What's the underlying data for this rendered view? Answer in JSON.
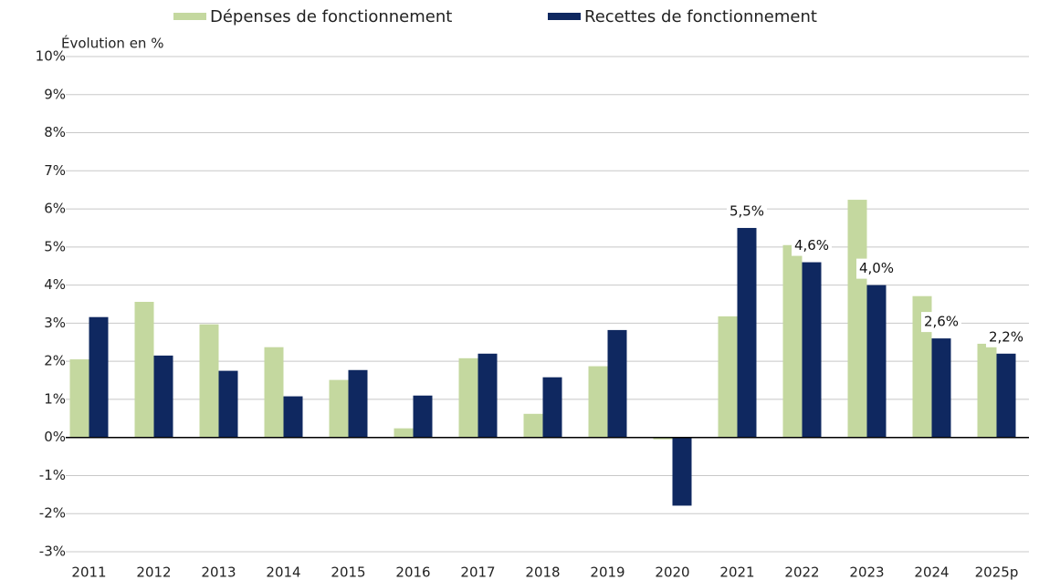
{
  "chart_data": {
    "type": "bar",
    "y_axis_label": "Évolution en %",
    "categories": [
      "2011",
      "2012",
      "2013",
      "2014",
      "2015",
      "2016",
      "2017",
      "2018",
      "2019",
      "2020",
      "2021",
      "2022",
      "2023",
      "2024",
      "2025p"
    ],
    "series": [
      {
        "name": "Dépenses de fonctionnement",
        "color": "#c4d89f",
        "values": [
          2.05,
          3.56,
          2.97,
          2.37,
          1.51,
          0.24,
          2.08,
          0.62,
          1.87,
          -0.05,
          3.18,
          5.05,
          6.24,
          3.71,
          2.46
        ]
      },
      {
        "name": "Recettes de fonctionnement",
        "color": "#0f2860",
        "values": [
          3.16,
          2.15,
          1.75,
          1.08,
          1.77,
          1.1,
          2.2,
          1.58,
          2.82,
          -1.79,
          5.5,
          4.6,
          4.0,
          2.6,
          2.2
        ],
        "value_labels": [
          null,
          null,
          null,
          null,
          null,
          null,
          null,
          null,
          null,
          null,
          "5,5%",
          "4,6%",
          "4,0%",
          "2,6%",
          "2,2%"
        ]
      }
    ],
    "ylim": [
      -3,
      10
    ],
    "yticks": [
      {
        "value": -3,
        "label": "-3%"
      },
      {
        "value": -2,
        "label": "-2%"
      },
      {
        "value": -1,
        "label": "-1%"
      },
      {
        "value": 0,
        "label": "0%"
      },
      {
        "value": 1,
        "label": "1%"
      },
      {
        "value": 2,
        "label": "2%"
      },
      {
        "value": 3,
        "label": "3%"
      },
      {
        "value": 4,
        "label": "4%"
      },
      {
        "value": 5,
        "label": "5%"
      },
      {
        "value": 6,
        "label": "6%"
      },
      {
        "value": 7,
        "label": "7%"
      },
      {
        "value": 8,
        "label": "8%"
      },
      {
        "value": 9,
        "label": "9%"
      },
      {
        "value": 10,
        "label": "10%"
      }
    ],
    "grid": true,
    "legend": "top"
  }
}
